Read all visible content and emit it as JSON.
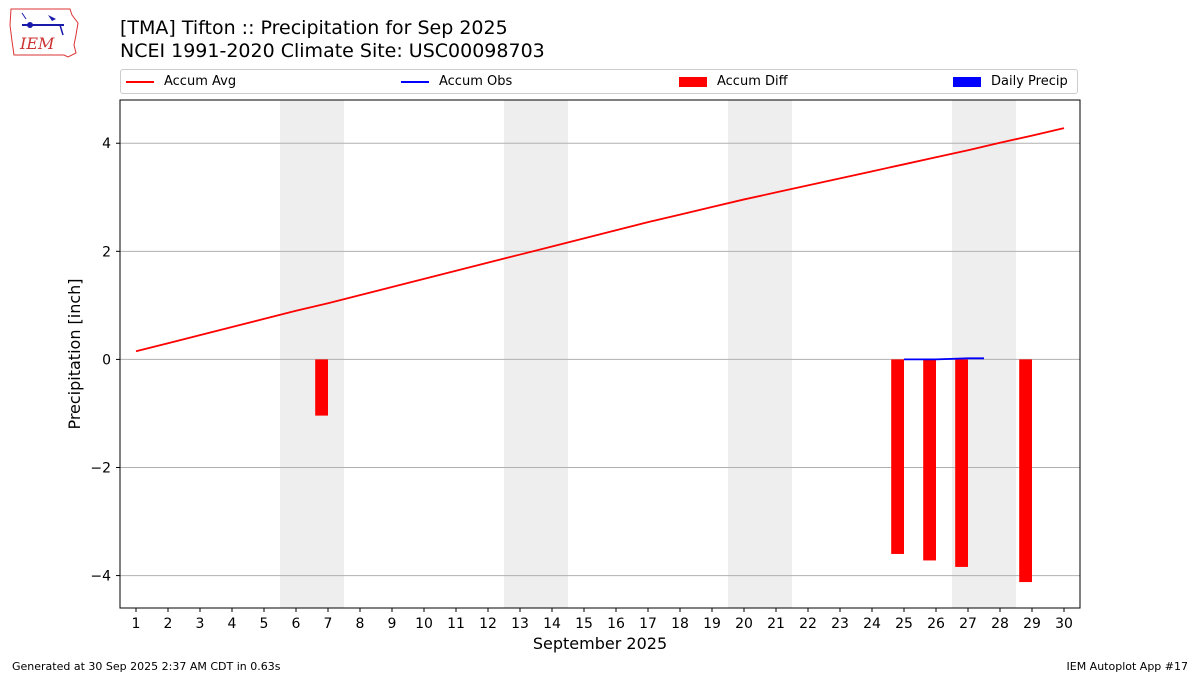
{
  "header": {
    "title_line1": "[TMA] Tifton :: Precipitation for Sep 2025",
    "title_line2": "NCEI 1991-2020 Climate Site: USC00098703"
  },
  "logo": {
    "text": "IEM",
    "icon": "iem-iowa-logo"
  },
  "footer": {
    "left": "Generated at 30 Sep 2025 2:37 AM CDT in 0.63s",
    "right": "IEM Autoplot App #17"
  },
  "legend": {
    "placement": "top",
    "items": [
      {
        "label": "Accum Avg",
        "color": "#ff0000",
        "kind": "line"
      },
      {
        "label": "Accum Obs",
        "color": "#0000ff",
        "kind": "line"
      },
      {
        "label": "Accum Diff",
        "color": "#ff0000",
        "kind": "bar"
      },
      {
        "label": "Daily Precip",
        "color": "#0000ff",
        "kind": "bar"
      }
    ]
  },
  "chart_data": {
    "type": "bar",
    "xlabel": "September 2025",
    "ylabel": "Precipitation [inch]",
    "xlim": [
      0.5,
      30.5
    ],
    "ylim": [
      -4.6,
      4.8
    ],
    "yticks": [
      -4,
      -2,
      0,
      2,
      4
    ],
    "ytick_labels": [
      "−4",
      "−2",
      "0",
      "2",
      "4"
    ],
    "xticks": [
      1,
      2,
      3,
      4,
      5,
      6,
      7,
      8,
      9,
      10,
      11,
      12,
      13,
      14,
      15,
      16,
      17,
      18,
      19,
      20,
      21,
      22,
      23,
      24,
      25,
      26,
      27,
      28,
      29,
      30
    ],
    "grid": "horizontal",
    "weekend_shading": [
      [
        5.5,
        7.5
      ],
      [
        12.5,
        14.5
      ],
      [
        19.5,
        21.5
      ],
      [
        26.5,
        28.5
      ]
    ],
    "accum_avg": {
      "name": "Accum Avg",
      "days": [
        1,
        2,
        3,
        4,
        5,
        6,
        7,
        8,
        9,
        10,
        11,
        12,
        13,
        14,
        15,
        16,
        17,
        18,
        19,
        20,
        21,
        22,
        23,
        24,
        25,
        26,
        27,
        28,
        29,
        30
      ],
      "values": [
        0.15,
        0.3,
        0.45,
        0.6,
        0.75,
        0.9,
        1.04,
        1.19,
        1.34,
        1.49,
        1.64,
        1.79,
        1.94,
        2.09,
        2.24,
        2.39,
        2.54,
        2.68,
        2.82,
        2.96,
        3.09,
        3.22,
        3.35,
        3.48,
        3.61,
        3.74,
        3.87,
        4.01,
        4.14,
        4.28
      ]
    },
    "accum_obs": {
      "name": "Accum Obs",
      "days": [
        25,
        26,
        27,
        27.5
      ],
      "values": [
        0.0,
        0.0,
        0.02,
        0.02
      ]
    },
    "accum_diff": {
      "name": "Accum Diff",
      "days": [
        7,
        25,
        26,
        27,
        29
      ],
      "values": [
        -1.04,
        -3.6,
        -3.72,
        -3.84,
        -4.12
      ]
    },
    "daily_precip": {
      "name": "Daily Precip",
      "days": [],
      "values": []
    }
  }
}
